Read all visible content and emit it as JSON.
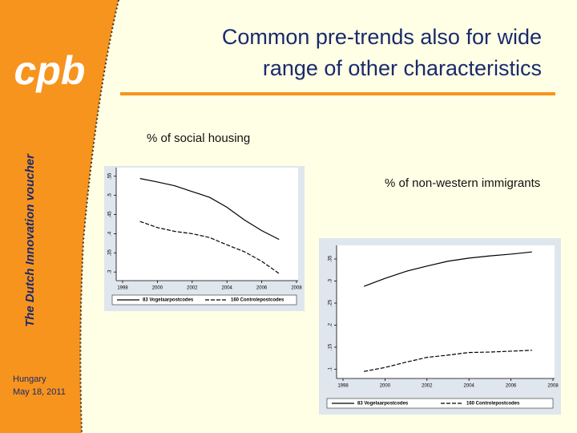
{
  "slide": {
    "logo": "cpb",
    "side_title": "The Dutch Innovation voucher",
    "place": "Hungary",
    "date": "May 18, 2011",
    "title_line1": "Common pre-trends also for wide",
    "title_line2": "range of other characteristics"
  },
  "chart_data": [
    {
      "type": "line",
      "title": "% of social housing",
      "x": [
        1999,
        2000,
        2001,
        2002,
        2003,
        2004,
        2005,
        2006,
        2007
      ],
      "xlim": [
        1998,
        2008
      ],
      "xticks": [
        1998,
        2000,
        2002,
        2004,
        2006,
        2008
      ],
      "ylim": [
        0.29,
        0.56
      ],
      "yticks": [
        {
          "value": 0.3,
          "label": ".3"
        },
        {
          "value": 0.35,
          "label": ".35"
        },
        {
          "value": 0.4,
          "label": ".4"
        },
        {
          "value": 0.45,
          "label": ".45"
        },
        {
          "value": 0.5,
          "label": ".5"
        },
        {
          "value": 0.55,
          "label": ".55"
        }
      ],
      "series": [
        {
          "name": "83 Vogelaarpostcodes",
          "color": "#000000",
          "dash": "solid",
          "values": [
            0.544,
            0.535,
            0.525,
            0.51,
            0.495,
            0.469,
            0.436,
            0.408,
            0.385
          ]
        },
        {
          "name": "160 Controlepostcodes",
          "color": "#000000",
          "dash": "dashed",
          "values": [
            0.432,
            0.416,
            0.406,
            0.4,
            0.39,
            0.371,
            0.353,
            0.328,
            0.296
          ]
        }
      ]
    },
    {
      "type": "line",
      "title": "% of non-western immigrants",
      "x": [
        1999,
        2000,
        2001,
        2002,
        2003,
        2004,
        2005,
        2006,
        2007
      ],
      "xlim": [
        1998,
        2008
      ],
      "xticks": [
        1998,
        2000,
        2002,
        2004,
        2006,
        2008
      ],
      "ylim": [
        0.09,
        0.37
      ],
      "yticks": [
        {
          "value": 0.1,
          "label": ".1"
        },
        {
          "value": 0.15,
          "label": ".15"
        },
        {
          "value": 0.2,
          "label": ".2"
        },
        {
          "value": 0.25,
          "label": ".25"
        },
        {
          "value": 0.3,
          "label": ".3"
        },
        {
          "value": 0.35,
          "label": ".35"
        }
      ],
      "series": [
        {
          "name": "83 Vogelaarpostcodes",
          "color": "#000000",
          "dash": "solid",
          "values": [
            0.288,
            0.306,
            0.322,
            0.334,
            0.345,
            0.352,
            0.357,
            0.361,
            0.366
          ]
        },
        {
          "name": "160 Controlepostcodes",
          "color": "#000000",
          "dash": "dashed",
          "values": [
            0.095,
            0.104,
            0.116,
            0.127,
            0.132,
            0.138,
            0.139,
            0.141,
            0.143
          ]
        }
      ]
    }
  ]
}
